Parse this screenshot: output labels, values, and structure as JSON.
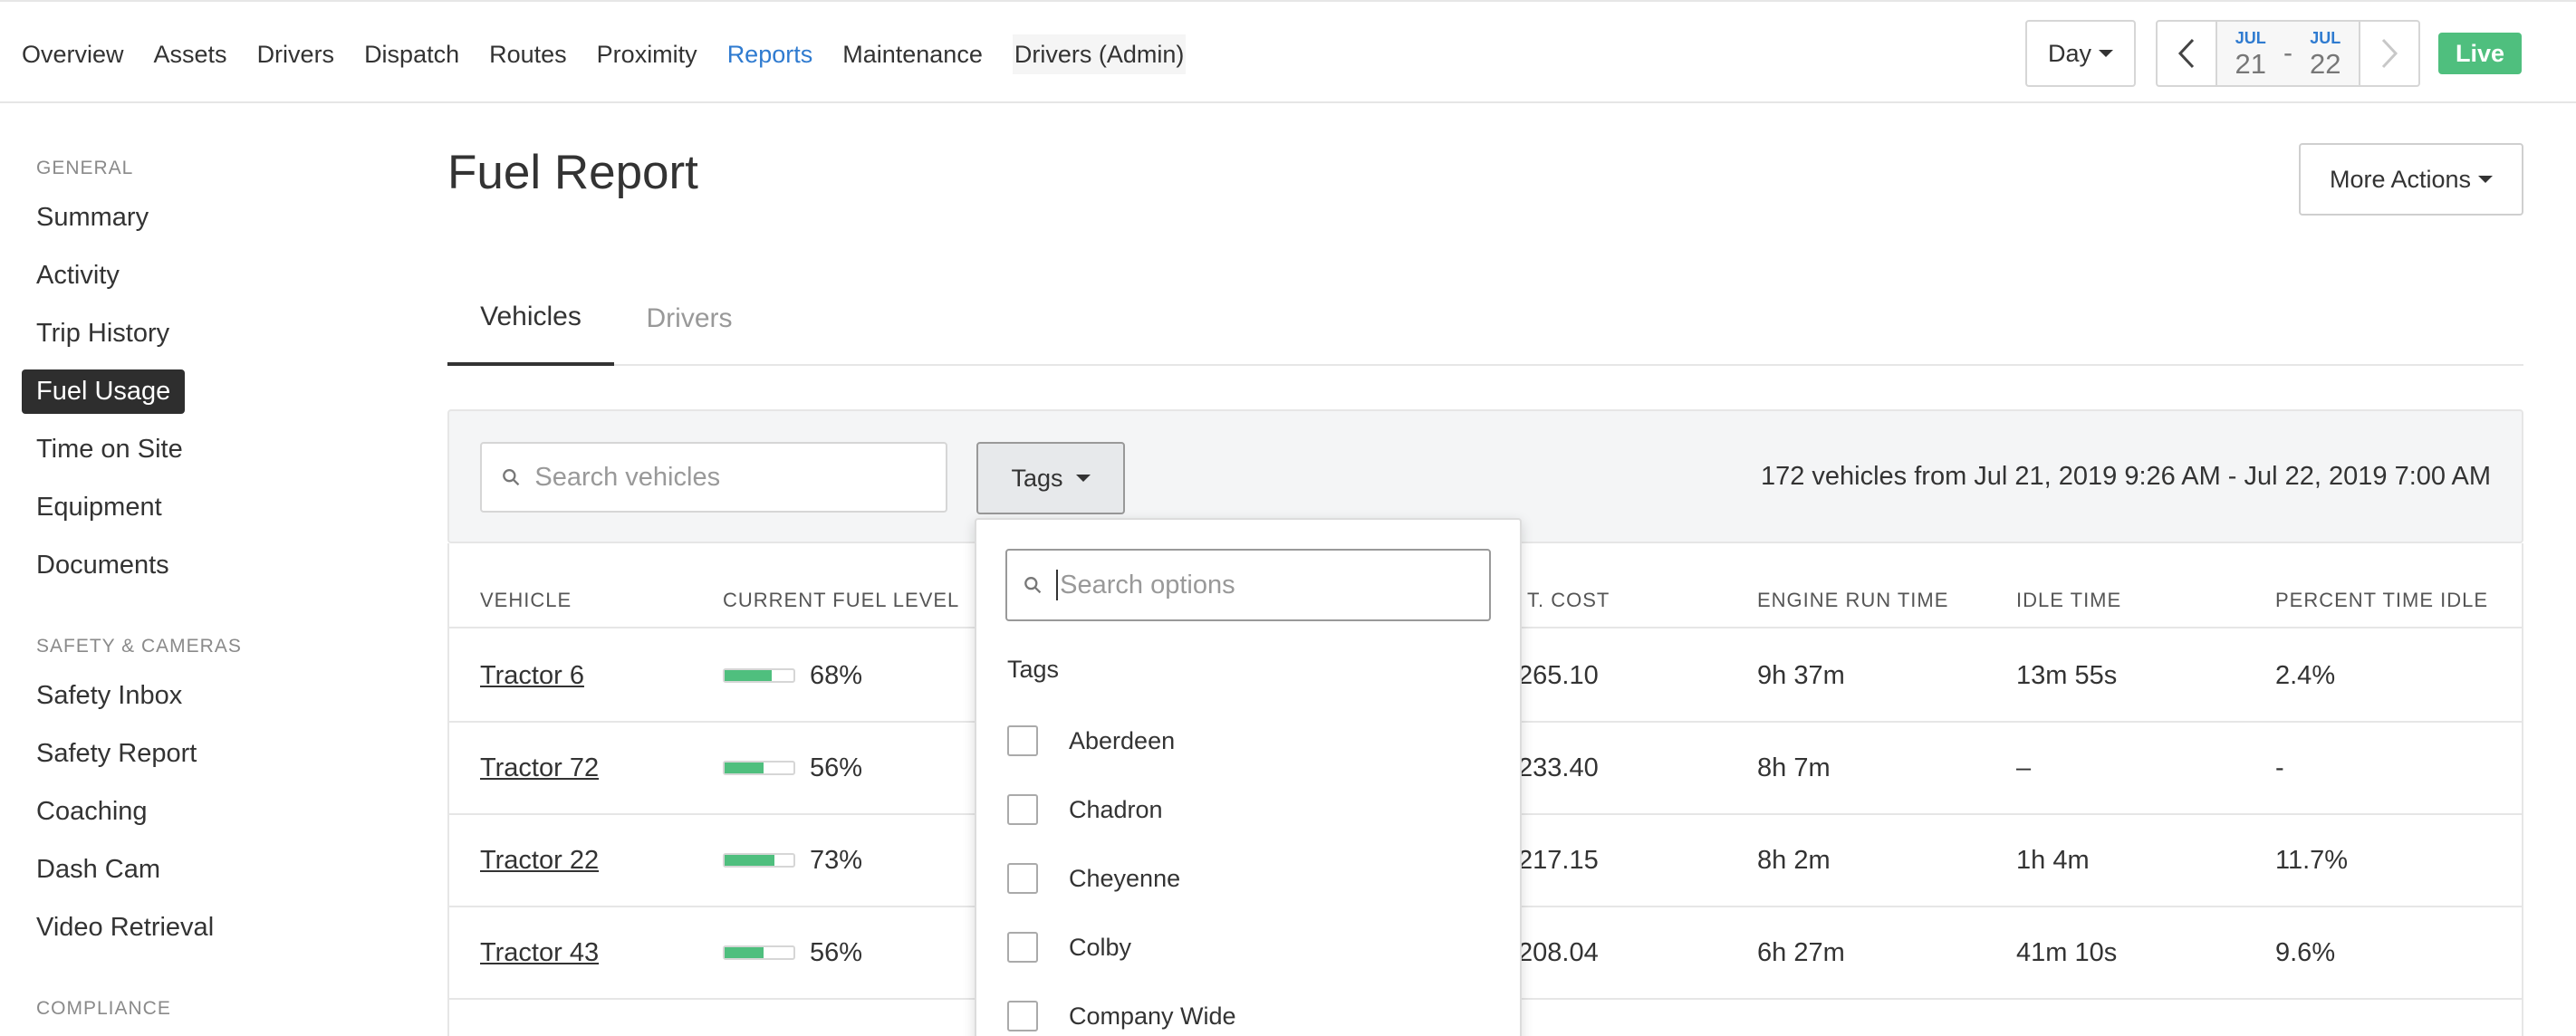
{
  "nav": {
    "items": [
      {
        "label": "Overview",
        "active": false
      },
      {
        "label": "Assets",
        "active": false
      },
      {
        "label": "Drivers",
        "active": false
      },
      {
        "label": "Dispatch",
        "active": false
      },
      {
        "label": "Routes",
        "active": false
      },
      {
        "label": "Proximity",
        "active": false
      },
      {
        "label": "Reports",
        "active": true
      },
      {
        "label": "Maintenance",
        "active": false
      },
      {
        "label": "Drivers (Admin)",
        "active": false
      }
    ],
    "period_label": "Day",
    "date_from": {
      "month": "JUL",
      "day": "21"
    },
    "date_to": {
      "month": "JUL",
      "day": "22"
    },
    "date_separator": "-",
    "live_label": "Live",
    "accent_color": "#2f7bd0",
    "live_color": "#4fbf7e"
  },
  "sidebar": {
    "sections": [
      {
        "title": "GENERAL",
        "items": [
          "Summary",
          "Activity",
          "Trip History",
          "Fuel Usage",
          "Time on Site",
          "Equipment",
          "Documents"
        ]
      },
      {
        "title": "SAFETY & CAMERAS",
        "items": [
          "Safety Inbox",
          "Safety Report",
          "Coaching",
          "Dash Cam",
          "Video Retrieval"
        ]
      },
      {
        "title": "COMPLIANCE",
        "items": []
      }
    ],
    "active_item": "Fuel Usage"
  },
  "page": {
    "title": "Fuel Report",
    "more_actions_label": "More Actions",
    "tabs": [
      {
        "label": "Vehicles",
        "active": true
      },
      {
        "label": "Drivers",
        "active": false
      }
    ]
  },
  "filters": {
    "search_placeholder": "Search vehicles",
    "tags_label": "Tags",
    "summary": "172 vehicles from Jul 21, 2019 9:26 AM - Jul 22, 2019 7:00 AM"
  },
  "table": {
    "columns": [
      "VEHICLE",
      "CURRENT FUEL LEVEL",
      "T. COST",
      "ENGINE RUN TIME",
      "IDLE TIME",
      "PERCENT TIME IDLE"
    ],
    "rows": [
      {
        "vehicle": "Tractor 6",
        "fuel_level": 68,
        "fuel_text": "68%",
        "cost": "265.10",
        "engine_run": "9h 37m",
        "idle": "13m 55s",
        "percent_idle": "2.4%"
      },
      {
        "vehicle": "Tractor 72",
        "fuel_level": 56,
        "fuel_text": "56%",
        "cost": "233.40",
        "engine_run": "8h 7m",
        "idle": "–",
        "percent_idle": "-"
      },
      {
        "vehicle": "Tractor 22",
        "fuel_level": 73,
        "fuel_text": "73%",
        "cost": "217.15",
        "engine_run": "8h 2m",
        "idle": "1h 4m",
        "percent_idle": "11.7%"
      },
      {
        "vehicle": "Tractor 43",
        "fuel_level": 56,
        "fuel_text": "56%",
        "cost": "208.04",
        "engine_run": "6h 27m",
        "idle": "41m 10s",
        "percent_idle": "9.6%"
      }
    ]
  },
  "tag_dropdown": {
    "search_placeholder": "Search options",
    "heading": "Tags",
    "options": [
      "Aberdeen",
      "Chadron",
      "Cheyenne",
      "Colby",
      "Company Wide"
    ]
  },
  "icons": {
    "search": "magnifier",
    "caret": "caret-down",
    "prev": "chevron-left",
    "next": "chevron-right"
  }
}
